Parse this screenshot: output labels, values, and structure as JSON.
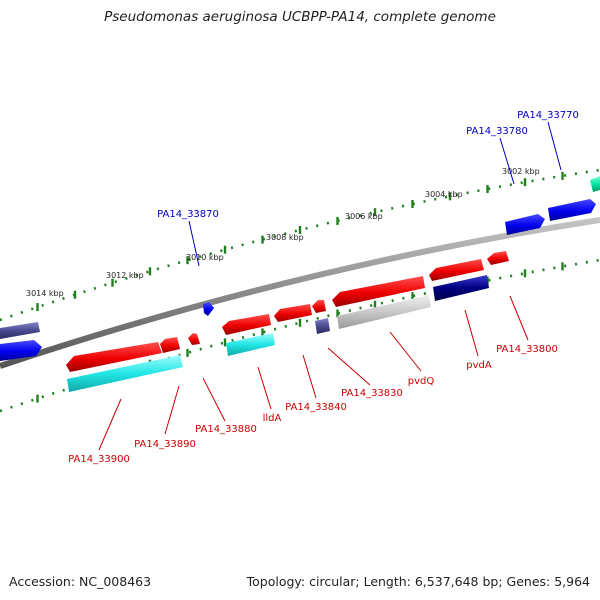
{
  "title": "Pseudomonas aeruginosa UCBPP-PA14, complete genome",
  "footer": {
    "accession": "Accession: NC_008463",
    "topology": "Topology: circular; Length: 6,537,648 bp; Genes: 5,964"
  },
  "kbp_labels": [
    "3002 kbp",
    "3004 kbp",
    "3006 kbp",
    "3008 kbp",
    "3010 kbp",
    "3012 kbp",
    "3014 kbp"
  ],
  "gene_labels_top": [
    "PA14_33770",
    "PA14_33780",
    "PA14_33870"
  ],
  "gene_labels_bottom": [
    "PA14_33800",
    "pvdA",
    "pvdQ",
    "PA14_33830",
    "PA14_33840",
    "lldA",
    "PA14_33880",
    "PA14_33890",
    "PA14_33900"
  ],
  "colors": {
    "label_top": "#0000bb",
    "label_bottom": "#cc0000",
    "tick": "#1f7f1f",
    "backbone": "#8a8a8a"
  }
}
